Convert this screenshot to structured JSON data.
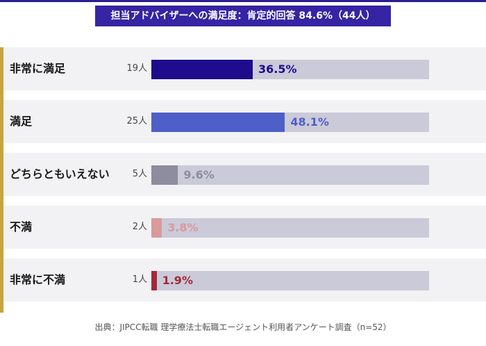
{
  "title": "担当アドバイザーへの満足度：肯定的回答 84.6%（44人）",
  "footer": "出典：JIPCC転職 理学療法士転職エージェント利用者アンケート調査（n=52）",
  "colors": {
    "title_bg": "#3524a3",
    "accent": "#c9a43c",
    "track": "#cbcad8"
  },
  "chart_data": {
    "type": "bar",
    "orientation": "horizontal",
    "title": "担当アドバイザーへの満足度：肯定的回答 84.6%（44人）",
    "categories": [
      "非常に満足",
      "満足",
      "どちらともいえない",
      "不満",
      "非常に不満"
    ],
    "counts": [
      "19人",
      "25人",
      "5人",
      "2人",
      "1人"
    ],
    "values": [
      36.5,
      48.1,
      9.6,
      3.8,
      1.9
    ],
    "value_labels": [
      "36.5%",
      "48.1%",
      "9.6%",
      "3.8%",
      "1.9%"
    ],
    "colors": [
      "#1e0c8c",
      "#4f5fc8",
      "#8e8c9f",
      "#d99a9a",
      "#a32a3a"
    ],
    "xlim": [
      0,
      100
    ],
    "grid": false
  }
}
